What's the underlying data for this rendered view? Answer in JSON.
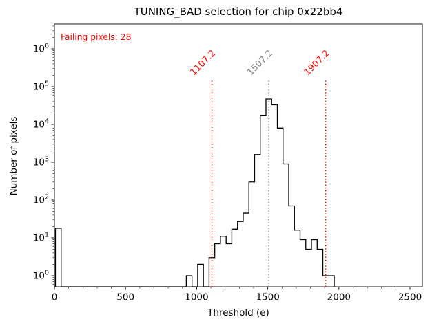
{
  "figure": {
    "background": "#ffffff"
  },
  "chart_data": {
    "type": "histogram-step",
    "title": "TUNING_BAD selection for chip 0x22bb4",
    "xlabel": "Threshold (e)",
    "ylabel": "Number of pixels",
    "annotation": {
      "text": "Failing pixels: 28",
      "color": "#ff0000"
    },
    "line_color": "#000000",
    "xlim": [
      0,
      2587
    ],
    "ylim_log": [
      0.512,
      4500000
    ],
    "x_ticks": [
      0,
      500,
      1000,
      1500,
      2000,
      2500
    ],
    "x_minor_step": 100,
    "y_tick_exponents": [
      0,
      1,
      2,
      3,
      4,
      5,
      6
    ],
    "y_scale": "log",
    "grid": "off",
    "legend": "none",
    "bin_width": 40,
    "bins_start": 7.2,
    "bins_end": 1967.2,
    "bins": [
      {
        "x0": 7.2,
        "count": 18
      },
      {
        "x0": 927.2,
        "count": 1
      },
      {
        "x0": 1007.2,
        "count": 2
      },
      {
        "x0": 1087.2,
        "count": 3
      },
      {
        "x0": 1127.2,
        "count": 7
      },
      {
        "x0": 1167.2,
        "count": 11
      },
      {
        "x0": 1207.2,
        "count": 7
      },
      {
        "x0": 1247.2,
        "count": 17
      },
      {
        "x0": 1287.2,
        "count": 27
      },
      {
        "x0": 1327.2,
        "count": 45
      },
      {
        "x0": 1367.2,
        "count": 300
      },
      {
        "x0": 1407.2,
        "count": 1600
      },
      {
        "x0": 1447.2,
        "count": 17000
      },
      {
        "x0": 1487.2,
        "count": 47000
      },
      {
        "x0": 1527.2,
        "count": 33000
      },
      {
        "x0": 1567.2,
        "count": 8000
      },
      {
        "x0": 1607.2,
        "count": 900
      },
      {
        "x0": 1647.2,
        "count": 70
      },
      {
        "x0": 1687.2,
        "count": 16
      },
      {
        "x0": 1727.2,
        "count": 9
      },
      {
        "x0": 1767.2,
        "count": 5
      },
      {
        "x0": 1807.2,
        "count": 9
      },
      {
        "x0": 1847.2,
        "count": 5
      },
      {
        "x0": 1887.2,
        "count": 1
      },
      {
        "x0": 1927.2,
        "count": 1
      }
    ],
    "vlines": [
      {
        "x": 1107.2,
        "label": "1107.2",
        "color": "#ff0000",
        "style": "dotted"
      },
      {
        "x": 1507.2,
        "label": "1507.2",
        "color": "#7f7f7f",
        "style": "dotted"
      },
      {
        "x": 1907.2,
        "label": "1907.2",
        "color": "#ff0000",
        "style": "dotted"
      }
    ]
  }
}
